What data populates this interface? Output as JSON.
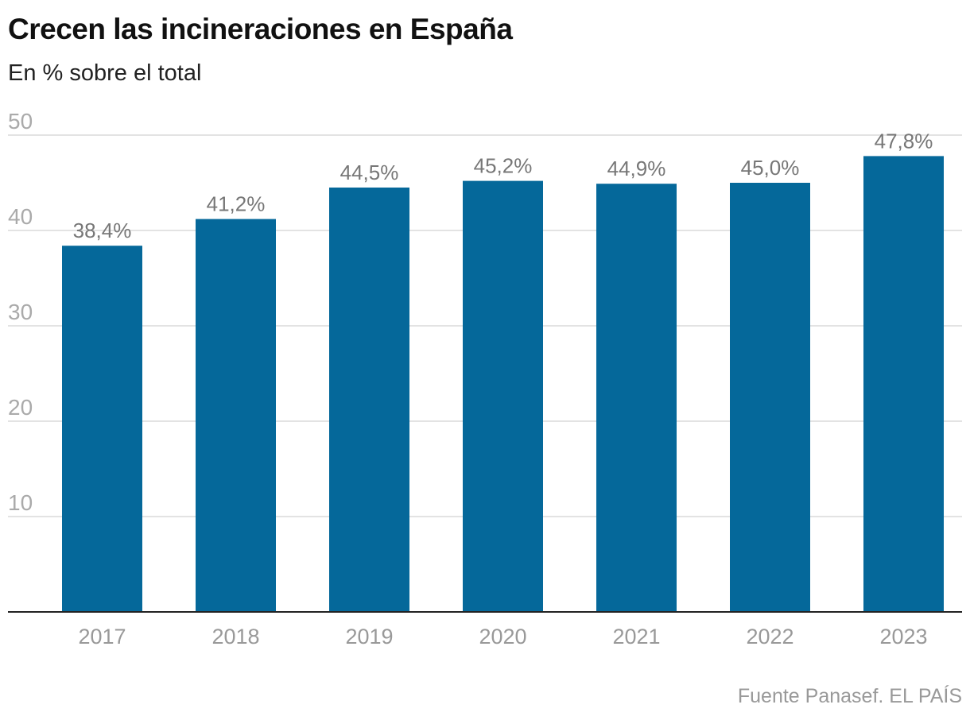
{
  "chart_data": {
    "type": "bar",
    "title": "Crecen las incineraciones en España",
    "subtitle": "En % sobre el total",
    "categories": [
      "2017",
      "2018",
      "2019",
      "2020",
      "2021",
      "2022",
      "2023"
    ],
    "values": [
      38.4,
      41.2,
      44.5,
      45.2,
      44.9,
      45.0,
      47.8
    ],
    "data_labels": [
      "38,4%",
      "41,2%",
      "44,5%",
      "45,2%",
      "44,9%",
      "45,0%",
      "47,8%"
    ],
    "yticks": [
      10,
      20,
      30,
      40,
      50
    ],
    "ylim": [
      0,
      50
    ],
    "grid": true,
    "xlabel": "",
    "ylabel": "",
    "bar_color": "#05689A",
    "source": "Fuente Panasef. EL PAÍS"
  }
}
